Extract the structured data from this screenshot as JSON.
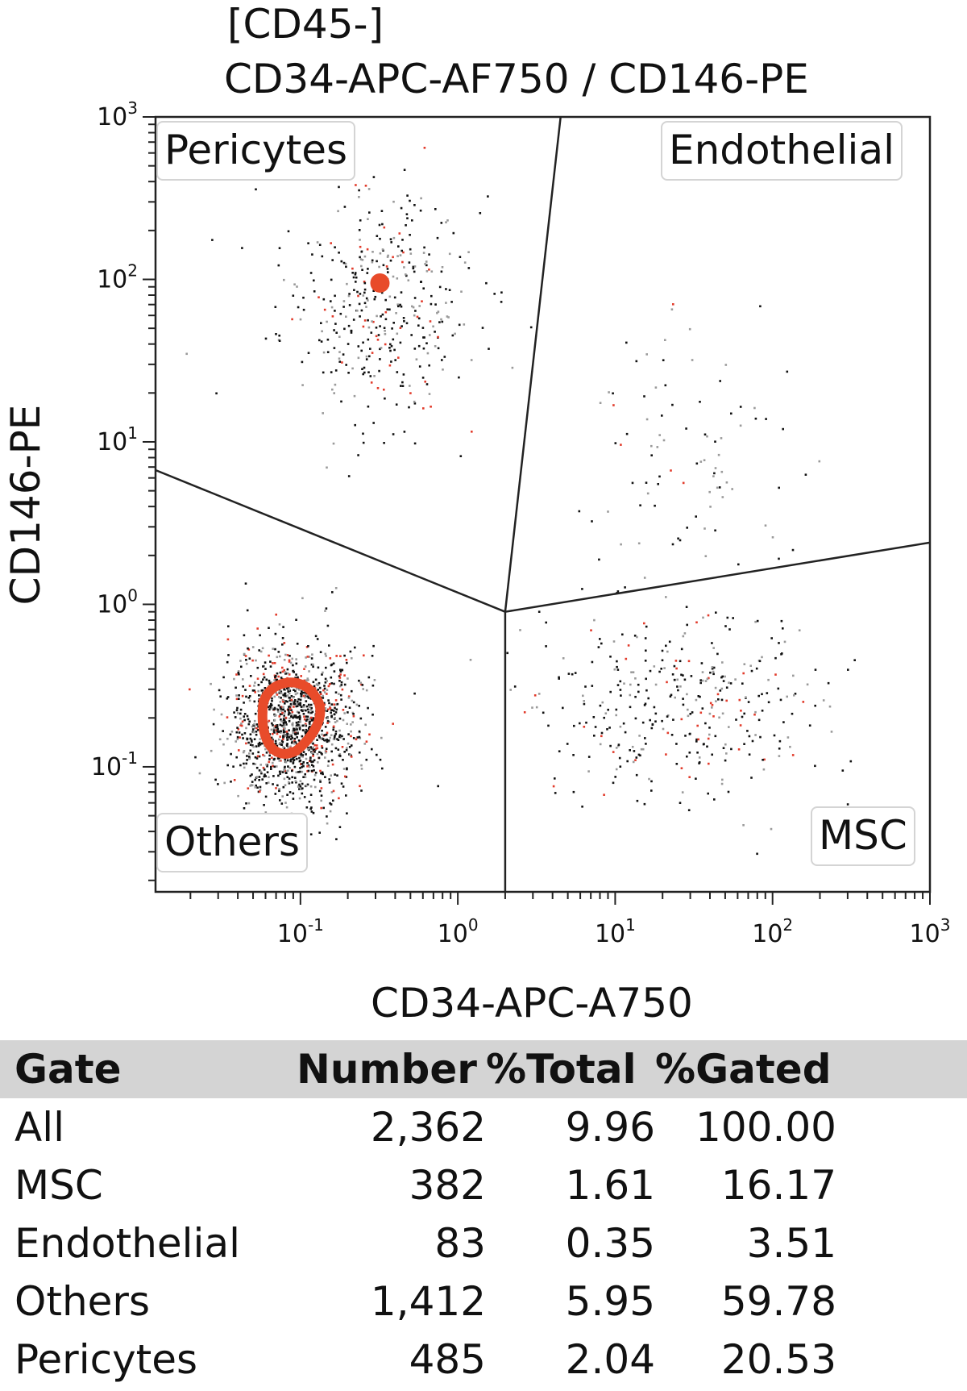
{
  "chart_data": {
    "type": "scatter",
    "title_line1": "[CD45-]",
    "title_line2": "CD34-APC-AF750 / CD146-PE",
    "xlabel": "CD34-APC-A750",
    "ylabel": "CD146-PE",
    "x_scale": "log",
    "y_scale": "log",
    "xlim": [
      0.012,
      1000
    ],
    "ylim": [
      0.017,
      1000
    ],
    "x_ticks": [
      {
        "value": 0.1,
        "base": "10",
        "exp": "-1"
      },
      {
        "value": 1,
        "base": "10",
        "exp": "0"
      },
      {
        "value": 10,
        "base": "10",
        "exp": "1"
      },
      {
        "value": 100,
        "base": "10",
        "exp": "2"
      },
      {
        "value": 1000,
        "base": "10",
        "exp": "3"
      }
    ],
    "y_ticks": [
      {
        "value": 0.1,
        "base": "10",
        "exp": "-1"
      },
      {
        "value": 1,
        "base": "10",
        "exp": "0"
      },
      {
        "value": 10,
        "base": "10",
        "exp": "1"
      },
      {
        "value": 100,
        "base": "10",
        "exp": "2"
      },
      {
        "value": 1000,
        "base": "10",
        "exp": "3"
      }
    ],
    "gate_labels": {
      "pericytes": "Pericytes",
      "endothelial": "Endothelial",
      "others": "Others",
      "msc": "MSC"
    },
    "gate_lines": [
      [
        [
          0.012,
          6.7
        ],
        [
          2.0,
          0.9
        ]
      ],
      [
        [
          2.0,
          0.9
        ],
        [
          4.5,
          1000
        ]
      ],
      [
        [
          2.0,
          0.9
        ],
        [
          2.0,
          0.017
        ]
      ],
      [
        [
          2.0,
          0.9
        ],
        [
          1000,
          2.4
        ]
      ]
    ],
    "clusters": [
      {
        "name": "Pericytes",
        "center": [
          0.3,
          70
        ],
        "spread": [
          0.3,
          0.35
        ],
        "count": 420
      },
      {
        "name": "Others",
        "center": [
          0.09,
          0.18
        ],
        "spread": [
          0.2,
          0.25
        ],
        "count": 1400
      },
      {
        "name": "MSC",
        "center": [
          25,
          0.25
        ],
        "spread": [
          0.45,
          0.3
        ],
        "count": 380
      },
      {
        "name": "Endothelial",
        "center": [
          30,
          8
        ],
        "spread": [
          0.35,
          0.35
        ],
        "count": 90
      }
    ],
    "density_markers": [
      {
        "x": 0.32,
        "y": 95,
        "shape": "dot",
        "color": "#e84b2a"
      },
      {
        "x": 0.09,
        "y": 0.19,
        "shape": "ring",
        "color": "#e84b2a"
      }
    ],
    "colors": {
      "dots": "#111111",
      "dots_gray": "#9a9a9a",
      "dots_red": "#e23b2b",
      "gate": "#222222"
    }
  },
  "stats_table": {
    "headers": [
      "Gate",
      "Number",
      "%Total",
      "%Gated"
    ],
    "rows": [
      [
        "All",
        "2,362",
        "9.96",
        "100.00"
      ],
      [
        "MSC",
        "382",
        "1.61",
        "16.17"
      ],
      [
        "Endothelial",
        "83",
        "0.35",
        "3.51"
      ],
      [
        "Others",
        "1,412",
        "5.95",
        "59.78"
      ],
      [
        "Pericytes",
        "485",
        "2.04",
        "20.53"
      ]
    ]
  }
}
